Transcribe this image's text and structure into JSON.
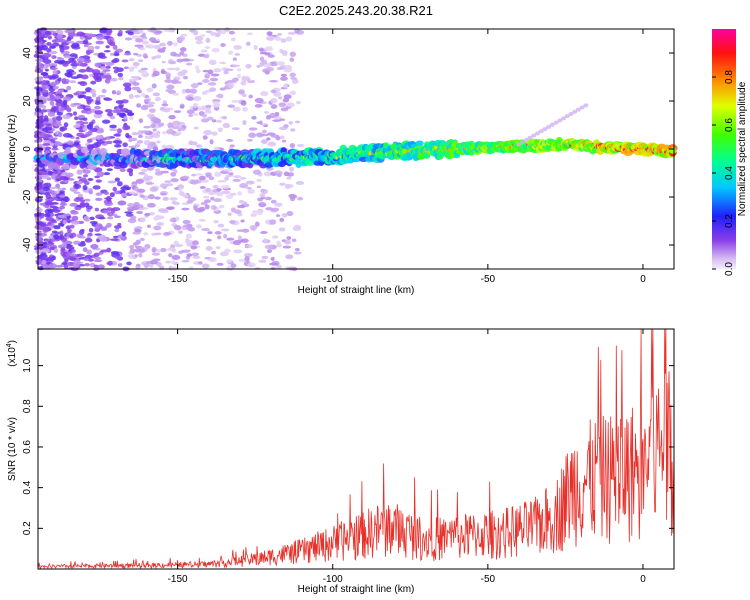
{
  "title": "C2E2.2025.243.20.38.R21",
  "chart_data": [
    {
      "type": "heatmap",
      "xlabel": "Height of straight line (km)",
      "ylabel": "Frequency (Hz)",
      "xlim": [
        -195,
        10
      ],
      "ylim": [
        -50,
        50
      ],
      "xticks": [
        -150,
        -100,
        -50,
        0
      ],
      "yticks": [
        -40,
        -20,
        0,
        20,
        40
      ],
      "colorbar": {
        "label": "Normalized spectral amplitude",
        "range": [
          0,
          1
        ],
        "ticks": [
          "0.0",
          "0.2",
          "0.4",
          "0.6",
          "0.8"
        ]
      },
      "ridge": [
        {
          "x": -165,
          "y": -4
        },
        {
          "x": -150,
          "y": -4
        },
        {
          "x": -125,
          "y": -4
        },
        {
          "x": -100,
          "y": -3
        },
        {
          "x": -80,
          "y": -1
        },
        {
          "x": -60,
          "y": 0
        },
        {
          "x": -40,
          "y": 1
        },
        {
          "x": -25,
          "y": 2
        },
        {
          "x": -15,
          "y": 1
        },
        {
          "x": 0,
          "y": 0
        },
        {
          "x": 10,
          "y": -1
        }
      ]
    },
    {
      "type": "line",
      "xlabel": "Height of straight line (km)",
      "ylabel": "SNR (10 * v/v)",
      "ylabel_multiplier": "(x10",
      "ylabel_exponent": "4",
      "xlim": [
        -195,
        10
      ],
      "ylim": [
        0,
        1.18
      ],
      "xticks": [
        -150,
        -100,
        -50,
        0
      ],
      "yticks": [
        "0.2",
        "0.4",
        "0.6",
        "0.8",
        "1.0"
      ],
      "line_color": "#e8302a",
      "envelope": [
        {
          "x": -195,
          "y": 0.02
        },
        {
          "x": -160,
          "y": 0.03
        },
        {
          "x": -140,
          "y": 0.04
        },
        {
          "x": -125,
          "y": 0.08
        },
        {
          "x": -110,
          "y": 0.15
        },
        {
          "x": -95,
          "y": 0.25
        },
        {
          "x": -82,
          "y": 0.35
        },
        {
          "x": -70,
          "y": 0.25
        },
        {
          "x": -55,
          "y": 0.28
        },
        {
          "x": -45,
          "y": 0.3
        },
        {
          "x": -35,
          "y": 0.35
        },
        {
          "x": -28,
          "y": 0.45
        },
        {
          "x": -22,
          "y": 0.7
        },
        {
          "x": -15,
          "y": 0.75
        },
        {
          "x": -8,
          "y": 0.78
        },
        {
          "x": 0,
          "y": 0.85
        },
        {
          "x": 5,
          "y": 1.0
        },
        {
          "x": 10,
          "y": 1.1
        }
      ]
    }
  ]
}
